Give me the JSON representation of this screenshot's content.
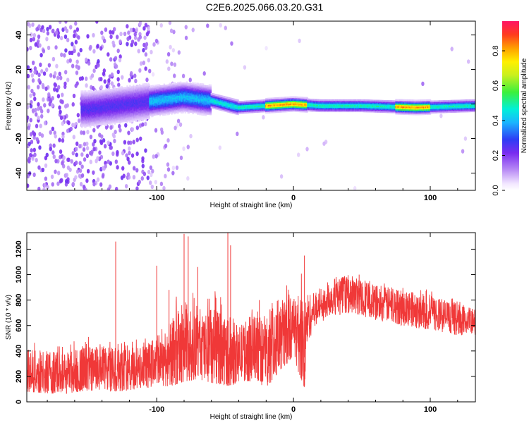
{
  "title": "C2E6.2025.066.03.20.G31",
  "chart_data": [
    {
      "type": "heatmap",
      "title": "C2E6.2025.066.03.20.G31",
      "xlabel": "Height of straight line (km)",
      "ylabel": "Frequency (Hz)",
      "xlim": [
        -195,
        133
      ],
      "ylim": [
        -50,
        48
      ],
      "x_ticks": [
        -100,
        0,
        100
      ],
      "y_ticks": [
        -40,
        -20,
        0,
        20,
        40
      ],
      "colorbar": {
        "label": "Normalized spectral amplitude",
        "range": [
          0.0,
          0.97
        ],
        "ticks": [
          0.0,
          0.2,
          0.4,
          0.6,
          0.8
        ]
      },
      "description_of_field": {
        "dominant_band_center_hz": [
          {
            "x": -150,
            "f": -3
          },
          {
            "x": -120,
            "f": 0
          },
          {
            "x": -100,
            "f": 2
          },
          {
            "x": -80,
            "f": 4
          },
          {
            "x": -60,
            "f": 2
          },
          {
            "x": -40,
            "f": -2
          },
          {
            "x": -20,
            "f": -1
          },
          {
            "x": 0,
            "f": 0
          },
          {
            "x": 20,
            "f": -1
          },
          {
            "x": 50,
            "f": -1
          },
          {
            "x": 90,
            "f": -2
          },
          {
            "x": 130,
            "f": -1
          }
        ],
        "peak_amplitude_regions_x": [
          [
            -20,
            10
          ],
          [
            75,
            100
          ]
        ]
      }
    },
    {
      "type": "line",
      "xlabel": "Height of straight line (km)",
      "ylabel": "SNR (10 * v/v)",
      "xlim": [
        -195,
        133
      ],
      "ylim": [
        0,
        1330
      ],
      "x_ticks": [
        -100,
        0,
        100
      ],
      "y_ticks": [
        0,
        200,
        400,
        600,
        800,
        1000,
        1200
      ],
      "series": [
        {
          "color": "#f03838",
          "envelope": {
            "x": [
              -195,
              -170,
              -150,
              -130,
              -110,
              -100,
              -90,
              -80,
              -70,
              -60,
              -50,
              -40,
              -30,
              -20,
              -10,
              -5,
              0,
              5,
              8,
              10,
              15,
              20,
              30,
              40,
              50,
              60,
              80,
              100,
              120,
              133
            ],
            "upper": [
              480,
              450,
              520,
              470,
              500,
              560,
              750,
              1000,
              780,
              900,
              820,
              600,
              750,
              700,
              900,
              950,
              800,
              1000,
              1150,
              950,
              850,
              900,
              980,
              1010,
              990,
              950,
              920,
              880,
              800,
              750
            ],
            "lower": [
              80,
              60,
              90,
              80,
              100,
              130,
              120,
              160,
              180,
              150,
              130,
              120,
              150,
              100,
              250,
              300,
              320,
              200,
              110,
              480,
              550,
              620,
              650,
              680,
              660,
              640,
              600,
              560,
              520,
              520
            ],
            "median": [
              230,
              220,
              250,
              250,
              260,
              320,
              350,
              420,
              420,
              400,
              380,
              380,
              420,
              380,
              500,
              550,
              600,
              500,
              350,
              650,
              720,
              780,
              830,
              850,
              820,
              780,
              740,
              700,
              650,
              620
            ]
          },
          "spikes": [
            {
              "x": -130,
              "y": 1260
            },
            {
              "x": -100,
              "y": 1070
            },
            {
              "x": -91,
              "y": 880
            },
            {
              "x": -80,
              "y": 1320
            },
            {
              "x": -77,
              "y": 1300
            },
            {
              "x": -70,
              "y": 1060
            },
            {
              "x": -48,
              "y": 1330
            },
            {
              "x": -46,
              "y": 1230
            },
            {
              "x": -25,
              "y": 800
            },
            {
              "x": 8,
              "y": 1150
            },
            {
              "x": 48,
              "y": 1000
            }
          ]
        }
      ]
    }
  ]
}
